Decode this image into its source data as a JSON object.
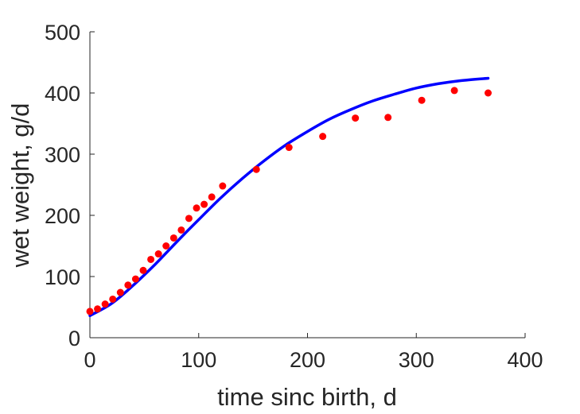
{
  "chart_data": {
    "type": "scatter",
    "xlabel": "time sinc birth, d",
    "ylabel": "wet weight, g/d",
    "xlim": [
      0,
      400
    ],
    "ylim": [
      0,
      500
    ],
    "xticks": [
      0,
      100,
      200,
      300,
      400
    ],
    "yticks": [
      0,
      100,
      200,
      300,
      400,
      500
    ],
    "grid": false,
    "series": [
      {
        "kind": "points",
        "color": "#ff0000",
        "x": [
          0,
          7,
          14,
          21,
          28,
          35,
          42,
          49,
          56,
          63,
          70,
          77,
          84,
          91,
          98,
          105,
          112,
          122,
          153,
          183,
          214,
          244,
          274,
          305,
          335,
          366
        ],
        "y": [
          43,
          47,
          55,
          63,
          74,
          86,
          96,
          110,
          128,
          137,
          150,
          163,
          176,
          195,
          212,
          218,
          230,
          248,
          275,
          311,
          329,
          359,
          360,
          388,
          404,
          400
        ]
      },
      {
        "kind": "line",
        "color": "#0000ff",
        "x": [
          0,
          20,
          40,
          60,
          80,
          100,
          120,
          140,
          160,
          180,
          200,
          220,
          240,
          260,
          280,
          300,
          320,
          340,
          366
        ],
        "y": [
          36,
          56,
          86,
          120,
          157,
          193,
          228,
          260,
          289,
          315,
          337,
          357,
          373,
          387,
          398,
          408,
          415,
          420,
          424
        ]
      }
    ]
  }
}
